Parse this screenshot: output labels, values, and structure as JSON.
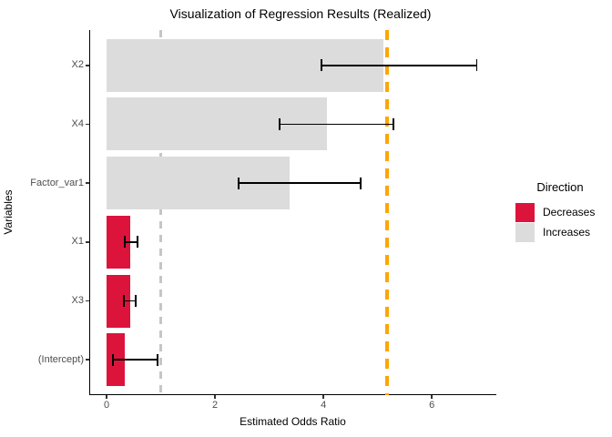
{
  "chart_data": {
    "type": "bar",
    "orientation": "horizontal",
    "title": "Visualization of Regression Results (Realized)",
    "xlabel": "Estimated Odds Ratio",
    "ylabel": "Variables",
    "grid": false,
    "background": "#FFFFFF",
    "xlim": [
      -0.32,
      7.19
    ],
    "x_ticks": [
      0,
      2,
      4,
      6
    ],
    "categories": [
      "X2",
      "X4",
      "Factor_var1",
      "X1",
      "X3",
      "(Intercept)"
    ],
    "bars": [
      {
        "label": "X2",
        "estimate": 5.11,
        "ci_low": 3.96,
        "ci_high": 6.83,
        "direction": "Increases"
      },
      {
        "label": "X4",
        "estimate": 4.07,
        "ci_low": 3.19,
        "ci_high": 5.29,
        "direction": "Increases"
      },
      {
        "label": "Factor_var1",
        "estimate": 3.38,
        "ci_low": 2.44,
        "ci_high": 4.69,
        "direction": "Increases"
      },
      {
        "label": "X1",
        "estimate": 0.44,
        "ci_low": 0.33,
        "ci_high": 0.57,
        "direction": "Decreases"
      },
      {
        "label": "X3",
        "estimate": 0.43,
        "ci_low": 0.32,
        "ci_high": 0.54,
        "direction": "Decreases"
      },
      {
        "label": "(Intercept)",
        "estimate": 0.33,
        "ci_low": 0.12,
        "ci_high": 0.94,
        "direction": "Decreases"
      }
    ],
    "colors": {
      "Decreases": "#DC143C",
      "Increases": "#DCDCDC"
    },
    "reference_lines": [
      {
        "name": "null-effect",
        "value": 1.0,
        "color": "#C6C6C6",
        "style": "dashed",
        "line_width": 3,
        "dash": [
          8,
          7
        ]
      },
      {
        "name": "realized-odds",
        "value": 5.17,
        "color": "#FFA500",
        "style": "dashed",
        "line_width": 4,
        "dash": [
          11,
          8
        ]
      }
    ],
    "legend": {
      "title": "Direction",
      "position": "right",
      "entries": [
        {
          "label": "Decreases",
          "color": "#DC143C"
        },
        {
          "label": "Increases",
          "color": "#DCDCDC"
        }
      ]
    }
  }
}
